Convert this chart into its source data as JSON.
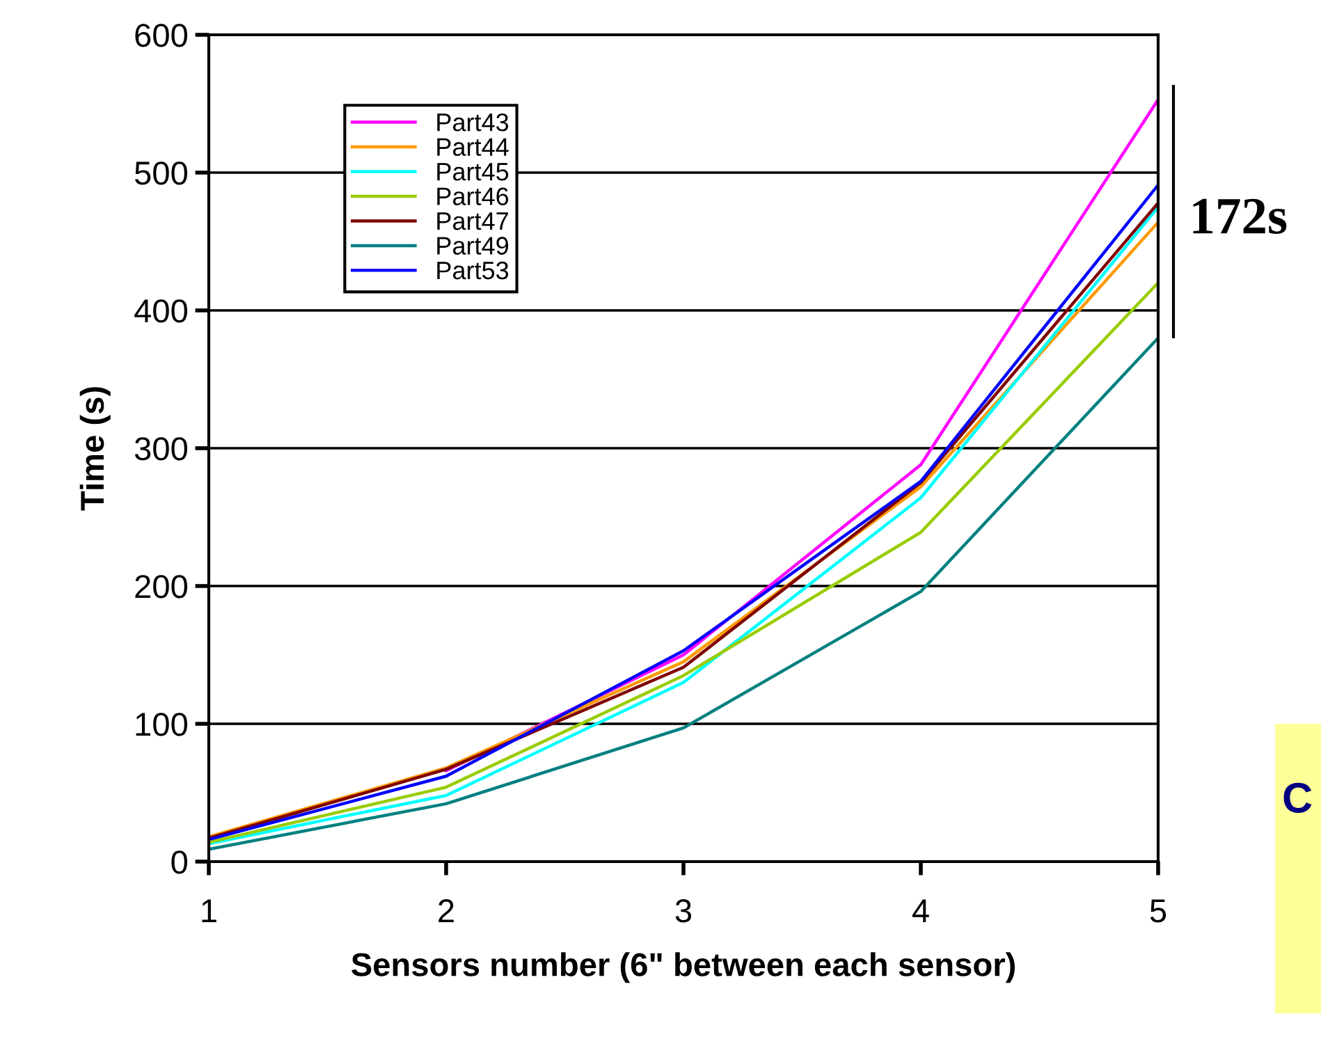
{
  "chart_data": {
    "type": "line",
    "xlabel": "Sensors number (6\" between each sensor)",
    "ylabel": "Time (s)",
    "x": [
      1,
      2,
      3,
      4,
      5
    ],
    "xlim": [
      1,
      5
    ],
    "xticks": [
      1,
      2,
      3,
      4,
      5
    ],
    "ylim": [
      0,
      600
    ],
    "yticks": [
      0,
      100,
      200,
      300,
      400,
      500,
      600
    ],
    "grid": "y",
    "legend": "top left",
    "marker": "none",
    "line_style": "solid",
    "series": [
      {
        "name": "Part43",
        "color": "#ff00ff",
        "values": [
          null,
          66,
          150,
          288,
          553
        ]
      },
      {
        "name": "Part44",
        "color": "#ff9900",
        "values": [
          18,
          68,
          145,
          272,
          464
        ]
      },
      {
        "name": "Part45",
        "color": "#00ffff",
        "values": [
          13,
          48,
          130,
          264,
          475
        ]
      },
      {
        "name": "Part46",
        "color": "#99cc00",
        "values": [
          14,
          54,
          135,
          239,
          420
        ]
      },
      {
        "name": "Part47",
        "color": "#800000",
        "values": [
          17,
          67,
          141,
          275,
          478
        ]
      },
      {
        "name": "Part49",
        "color": "#008080",
        "values": [
          9,
          42,
          97,
          196,
          380
        ]
      },
      {
        "name": "Part53",
        "color": "#0000ff",
        "values": [
          16,
          62,
          153,
          276,
          491
        ]
      }
    ],
    "annotations": [
      {
        "text": "172s",
        "x": 5,
        "y": 465
      },
      "C"
    ]
  }
}
